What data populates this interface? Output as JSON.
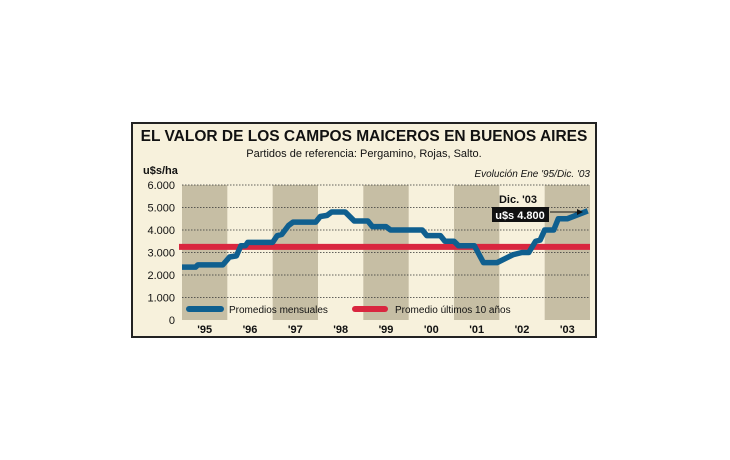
{
  "chart_data": {
    "type": "line",
    "title": "EL VALOR DE LOS CAMPOS MAICEROS EN BUENOS AIRES",
    "subtitle": "Partidos de referencia: Pergamino, Rojas, Salto.",
    "note": "Evolución Ene '95/Dic. '03",
    "ylabel": "u$s/ha",
    "ylim": [
      0,
      6000
    ],
    "yticks": [
      "0",
      "1.000",
      "2.000",
      "3.000",
      "4.000",
      "5.000",
      "6.000"
    ],
    "xlim": [
      1995,
      2004
    ],
    "xticks": [
      "'95",
      "'96",
      "'97",
      "'98",
      "'99",
      "'00",
      "'01",
      "'02",
      "'03"
    ],
    "grid": true,
    "legend_placement": "bottom-left",
    "series": [
      {
        "name": "Promedios mensuales",
        "color": "#0f5f8f",
        "points": [
          [
            1995.0,
            2350
          ],
          [
            1995.3,
            2350
          ],
          [
            1995.35,
            2450
          ],
          [
            1995.9,
            2450
          ],
          [
            1996.05,
            2800
          ],
          [
            1996.2,
            2850
          ],
          [
            1996.3,
            3300
          ],
          [
            1996.4,
            3300
          ],
          [
            1996.45,
            3450
          ],
          [
            1997.0,
            3450
          ],
          [
            1997.1,
            3750
          ],
          [
            1997.2,
            3800
          ],
          [
            1997.35,
            4200
          ],
          [
            1997.45,
            4350
          ],
          [
            1997.95,
            4350
          ],
          [
            1998.05,
            4600
          ],
          [
            1998.2,
            4650
          ],
          [
            1998.3,
            4800
          ],
          [
            1998.6,
            4800
          ],
          [
            1998.8,
            4400
          ],
          [
            1999.1,
            4400
          ],
          [
            1999.2,
            4150
          ],
          [
            1999.5,
            4150
          ],
          [
            1999.6,
            4000
          ],
          [
            2000.3,
            4000
          ],
          [
            2000.4,
            3750
          ],
          [
            2000.7,
            3750
          ],
          [
            2000.8,
            3500
          ],
          [
            2001.0,
            3500
          ],
          [
            2001.1,
            3300
          ],
          [
            2001.45,
            3300
          ],
          [
            2001.65,
            2550
          ],
          [
            2001.95,
            2550
          ],
          [
            2002.3,
            2900
          ],
          [
            2002.5,
            3000
          ],
          [
            2002.65,
            3000
          ],
          [
            2002.8,
            3500
          ],
          [
            2002.9,
            3550
          ],
          [
            2003.0,
            4000
          ],
          [
            2003.2,
            4000
          ],
          [
            2003.3,
            4500
          ],
          [
            2003.5,
            4500
          ],
          [
            2003.95,
            4850
          ]
        ]
      },
      {
        "name": "Promedio últimos 10 años",
        "color": "#d9263f",
        "value": 3250
      }
    ],
    "annotation": {
      "label": "Dic. '03",
      "value": "u$s 4.800"
    }
  }
}
